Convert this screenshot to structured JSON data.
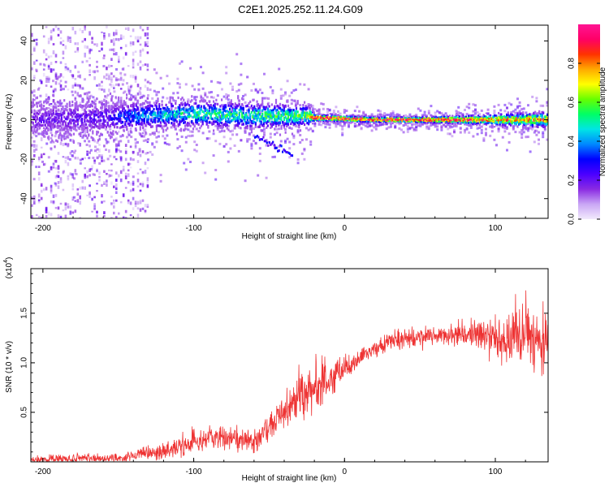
{
  "title": "C2E1.2025.252.11.24.G09",
  "chart_data": [
    {
      "type": "heatmap",
      "title": "C2E1.2025.252.11.24.G09",
      "xlabel": "Height of straight line (km)",
      "ylabel": "Frequency (Hz)",
      "xlim": [
        -208,
        135
      ],
      "ylim": [
        -50,
        48
      ],
      "xticks": [
        -200,
        -100,
        0,
        100
      ],
      "yticks": [
        -40,
        -20,
        0,
        20,
        40
      ],
      "colorbar": {
        "label": "Normalized spectral amplitude",
        "range": [
          0,
          1
        ],
        "ticks": [
          "0.0",
          "0.2",
          "0.4",
          "0.6",
          "0.8"
        ],
        "colors": [
          "#f2eafc",
          "#c9a6f5",
          "#8a2be2",
          "#4b00ff",
          "#0000ff",
          "#0088ff",
          "#00e5e5",
          "#00ff66",
          "#66ff00",
          "#ffff00",
          "#ffaa00",
          "#ff3300",
          "#ff0066",
          "#ff1493"
        ]
      },
      "band_profile": [
        {
          "x": -208,
          "center": 0,
          "half_width": 8,
          "amplitude": 0.18
        },
        {
          "x": -160,
          "center": 1,
          "half_width": 8,
          "amplitude": 0.22
        },
        {
          "x": -140,
          "center": 2,
          "half_width": 7,
          "amplitude": 0.35
        },
        {
          "x": -100,
          "center": 3,
          "half_width": 6,
          "amplitude": 0.5
        },
        {
          "x": -60,
          "center": 2,
          "half_width": 6,
          "amplitude": 0.5
        },
        {
          "x": -25,
          "center": 2,
          "half_width": 5,
          "amplitude": 0.55
        },
        {
          "x": -20,
          "center": 1,
          "half_width": 1.5,
          "amplitude": 0.9
        },
        {
          "x": 20,
          "center": 0,
          "half_width": 1.2,
          "amplitude": 0.95
        },
        {
          "x": 60,
          "center": 0,
          "half_width": 1.5,
          "amplitude": 0.9
        },
        {
          "x": 100,
          "center": 0,
          "half_width": 2.5,
          "amplitude": 0.75
        },
        {
          "x": 135,
          "center": 0,
          "half_width": 3.5,
          "amplitude": 0.7
        }
      ],
      "scatter_region": {
        "x_start": -208,
        "x_end": -130,
        "f_range": [
          -50,
          48
        ],
        "amplitude": 0.15
      },
      "tail_feature": {
        "x_start": -60,
        "x_end": -35,
        "f_start": -8,
        "f_end": -18
      }
    },
    {
      "type": "line",
      "xlabel": "Height of straight line (km)",
      "ylabel": "SNR (10 * v/v)",
      "scale_note": "(x10",
      "scale_exp": "4",
      "xlim": [
        -208,
        135
      ],
      "ylim": [
        0,
        1.95
      ],
      "xticks": [
        -200,
        -100,
        0,
        100
      ],
      "yticks": [
        "0.5",
        "1.0",
        "1.5"
      ],
      "line_color": "#ee3333",
      "envelope": [
        {
          "x": -208,
          "mean": 0.02,
          "noise": 0.03
        },
        {
          "x": -150,
          "mean": 0.04,
          "noise": 0.04
        },
        {
          "x": -120,
          "mean": 0.1,
          "noise": 0.06
        },
        {
          "x": -100,
          "mean": 0.2,
          "noise": 0.09
        },
        {
          "x": -80,
          "mean": 0.25,
          "noise": 0.1
        },
        {
          "x": -60,
          "mean": 0.2,
          "noise": 0.08
        },
        {
          "x": -50,
          "mean": 0.35,
          "noise": 0.12
        },
        {
          "x": -40,
          "mean": 0.5,
          "noise": 0.14
        },
        {
          "x": -30,
          "mean": 0.65,
          "noise": 0.18
        },
        {
          "x": -20,
          "mean": 0.75,
          "noise": 0.2
        },
        {
          "x": -10,
          "mean": 0.82,
          "noise": 0.12
        },
        {
          "x": 0,
          "mean": 0.95,
          "noise": 0.08
        },
        {
          "x": 10,
          "mean": 1.05,
          "noise": 0.06
        },
        {
          "x": 20,
          "mean": 1.15,
          "noise": 0.06
        },
        {
          "x": 30,
          "mean": 1.22,
          "noise": 0.06
        },
        {
          "x": 50,
          "mean": 1.25,
          "noise": 0.07
        },
        {
          "x": 70,
          "mean": 1.28,
          "noise": 0.08
        },
        {
          "x": 90,
          "mean": 1.3,
          "noise": 0.12
        },
        {
          "x": 110,
          "mean": 1.25,
          "noise": 0.2
        },
        {
          "x": 120,
          "mean": 1.3,
          "noise": 0.25
        },
        {
          "x": 135,
          "mean": 1.22,
          "noise": 0.2
        }
      ]
    }
  ]
}
